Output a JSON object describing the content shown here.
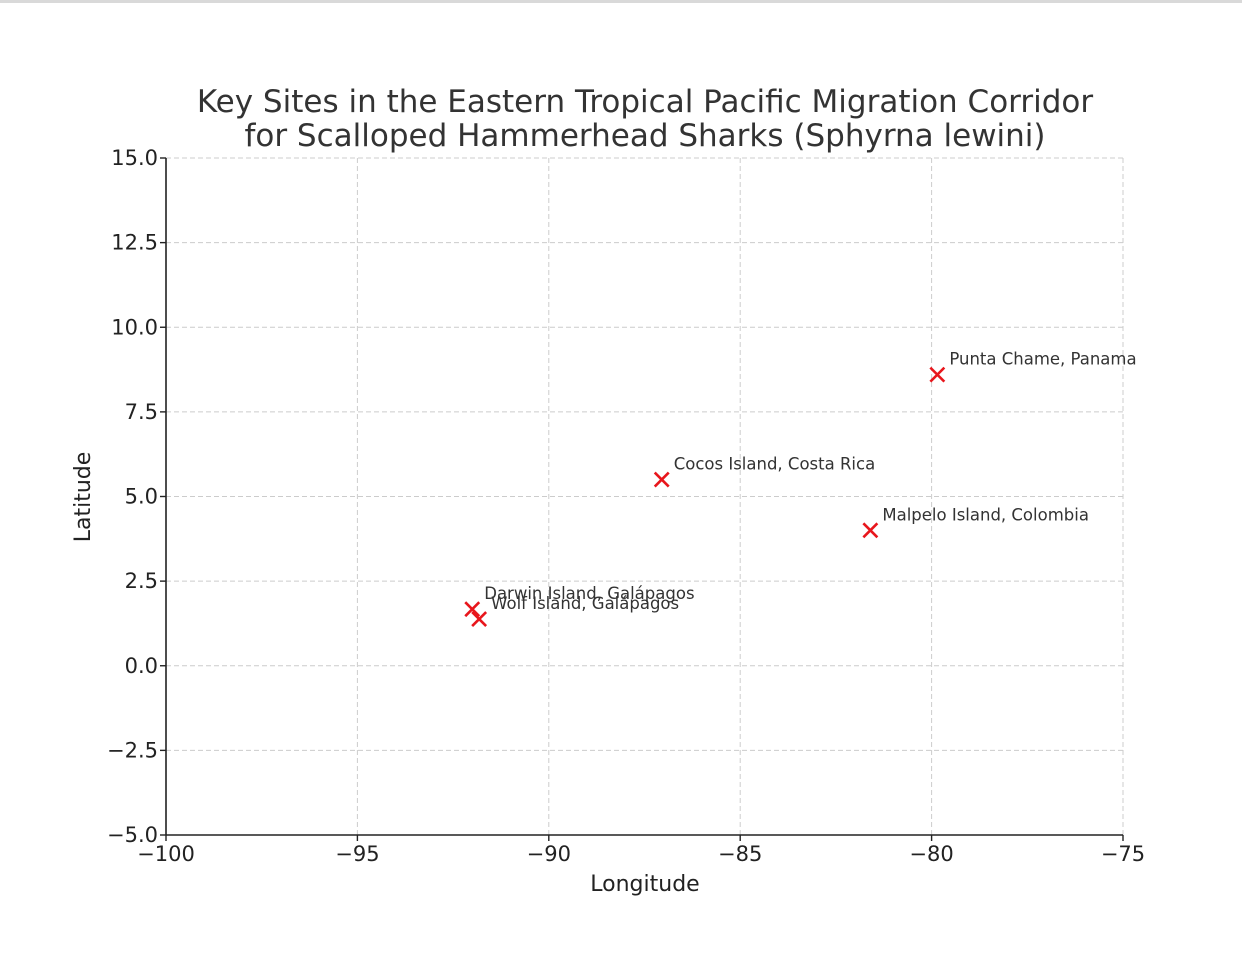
{
  "chart_data": {
    "type": "scatter",
    "title_lines": [
      "Key Sites in the Eastern Tropical Pacific Migration Corridor",
      "for Scalloped Hammerhead Sharks (Sphyrna lewini)"
    ],
    "xlabel": "Longitude",
    "ylabel": "Latitude",
    "xlim": [
      -100,
      -75
    ],
    "ylim": [
      -5.0,
      15.0
    ],
    "xticks": [
      -100,
      -95,
      -90,
      -85,
      -80,
      -75
    ],
    "xtick_labels": [
      "−100",
      "−95",
      "−90",
      "−85",
      "−80",
      "−75"
    ],
    "yticks": [
      -5.0,
      -2.5,
      0.0,
      2.5,
      5.0,
      7.5,
      10.0,
      12.5,
      15.0
    ],
    "ytick_labels": [
      "−5.0",
      "−2.5",
      "0.0",
      "2.5",
      "5.0",
      "7.5",
      "10.0",
      "12.5",
      "15.0"
    ],
    "grid": true,
    "marker": "x",
    "marker_color": "#e8161c",
    "points": [
      {
        "label": "Punta Chame, Panama",
        "x": -79.85,
        "y": 8.6
      },
      {
        "label": "Cocos Island, Costa Rica",
        "x": -87.05,
        "y": 5.5
      },
      {
        "label": "Malpelo Island, Colombia",
        "x": -81.6,
        "y": 4.0
      },
      {
        "label": "Darwin Island, Galápagos",
        "x": -92.0,
        "y": 1.67
      },
      {
        "label": "Wolf Island, Galápagos",
        "x": -91.82,
        "y": 1.38
      }
    ]
  }
}
